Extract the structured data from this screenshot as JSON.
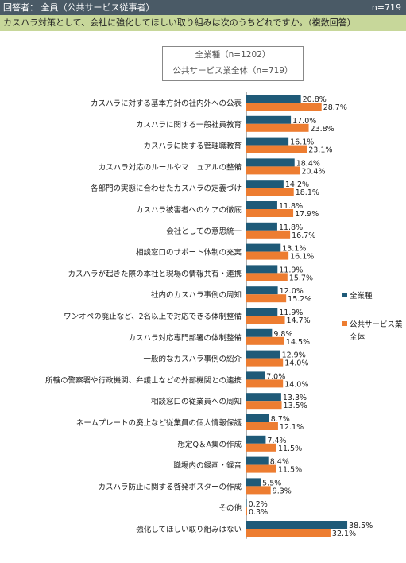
{
  "header": {
    "respondents": "回答者： 全員（公共サービス従事者）",
    "n_total": "n=719"
  },
  "question": "カスハラ対策として、会社に強化してほしい取り組みは次のうちどれですか。（複数回答）",
  "sample_box": {
    "line1": "全業種（n=1202）",
    "line2": "公共サービス業全体（n=719）"
  },
  "colors": {
    "all_industries": "#1f5a78",
    "public_service": "#ed7d31",
    "header_bg": "#4a5a66",
    "question_bg": "#c7d79a"
  },
  "chart_data": {
    "type": "bar",
    "orientation": "horizontal",
    "unit": "%",
    "xlim": [
      0,
      50
    ],
    "grid": false,
    "legend_position": "right",
    "categories": [
      "カスハラに対する基本方針の社内外への公表",
      "カスハラに関する一般社員教育",
      "カスハラに関する管理職教育",
      "カスハラ対応のルールやマニュアルの整備",
      "各部門の実態に合わせたカスハラの定義づけ",
      "カスハラ被害者へのケアの徹底",
      "会社としての意思統一",
      "相談窓口のサポート体制の充実",
      "カスハラが起きた際の本社と現場の情報共有・連携",
      "社内のカスハラ事例の周知",
      "ワンオペの廃止など、2名以上で対応できる体制整備",
      "カスハラ対応専門部署の体制整備",
      "一般的なカスハラ事例の紹介",
      "所轄の警察署や行政機関、弁護士などの外部機関との連携",
      "相談窓口の従業員への周知",
      "ネームプレートの廃止など従業員の個人情報保護",
      "想定Q＆A集の作成",
      "職場内の録画・録音",
      "カスハラ防止に関する啓発ポスターの作成",
      "その他",
      "強化してほしい取り組みはない"
    ],
    "series": [
      {
        "name": "全業種",
        "values": [
          20.8,
          17.0,
          16.1,
          18.4,
          14.2,
          11.8,
          11.8,
          13.1,
          11.9,
          12.0,
          11.9,
          9.8,
          12.9,
          7.0,
          13.3,
          8.7,
          7.4,
          8.4,
          5.5,
          0.2,
          38.5
        ],
        "labels": [
          "20.8%",
          "17.0%",
          "16.1%",
          "18.4%",
          "14.2%",
          "11.8%",
          "11.8%",
          "13.1%",
          "11.9%",
          "12.0%",
          "11.9%",
          "9.8%",
          "12.9%",
          "7.0%",
          "13.3%",
          "8.7%",
          "7.4%",
          "8.4%",
          "5.5%",
          "0.2%",
          "38.5%"
        ]
      },
      {
        "name": "公共サービス業全体",
        "values": [
          28.7,
          23.8,
          23.1,
          20.4,
          18.1,
          17.9,
          16.7,
          16.1,
          15.7,
          15.2,
          14.7,
          14.5,
          14.0,
          14.0,
          13.5,
          12.1,
          11.5,
          11.5,
          9.3,
          0.3,
          32.1
        ],
        "labels": [
          "28.7%",
          "23.8%",
          "23.1%",
          "20.4%",
          "18.1%",
          "17.9%",
          "16.7%",
          "16.1%",
          "15.7%",
          "15.2%",
          "14.7%",
          "14.5%",
          "14.0%",
          "14.0%",
          "13.5%",
          "12.1%",
          "11.5%",
          "11.5%",
          "9.3%",
          "0.3%",
          "32.1%"
        ]
      }
    ],
    "legend": [
      {
        "label": "全業種"
      },
      {
        "label": "公共サービス業",
        "label2": "全体"
      }
    ]
  }
}
